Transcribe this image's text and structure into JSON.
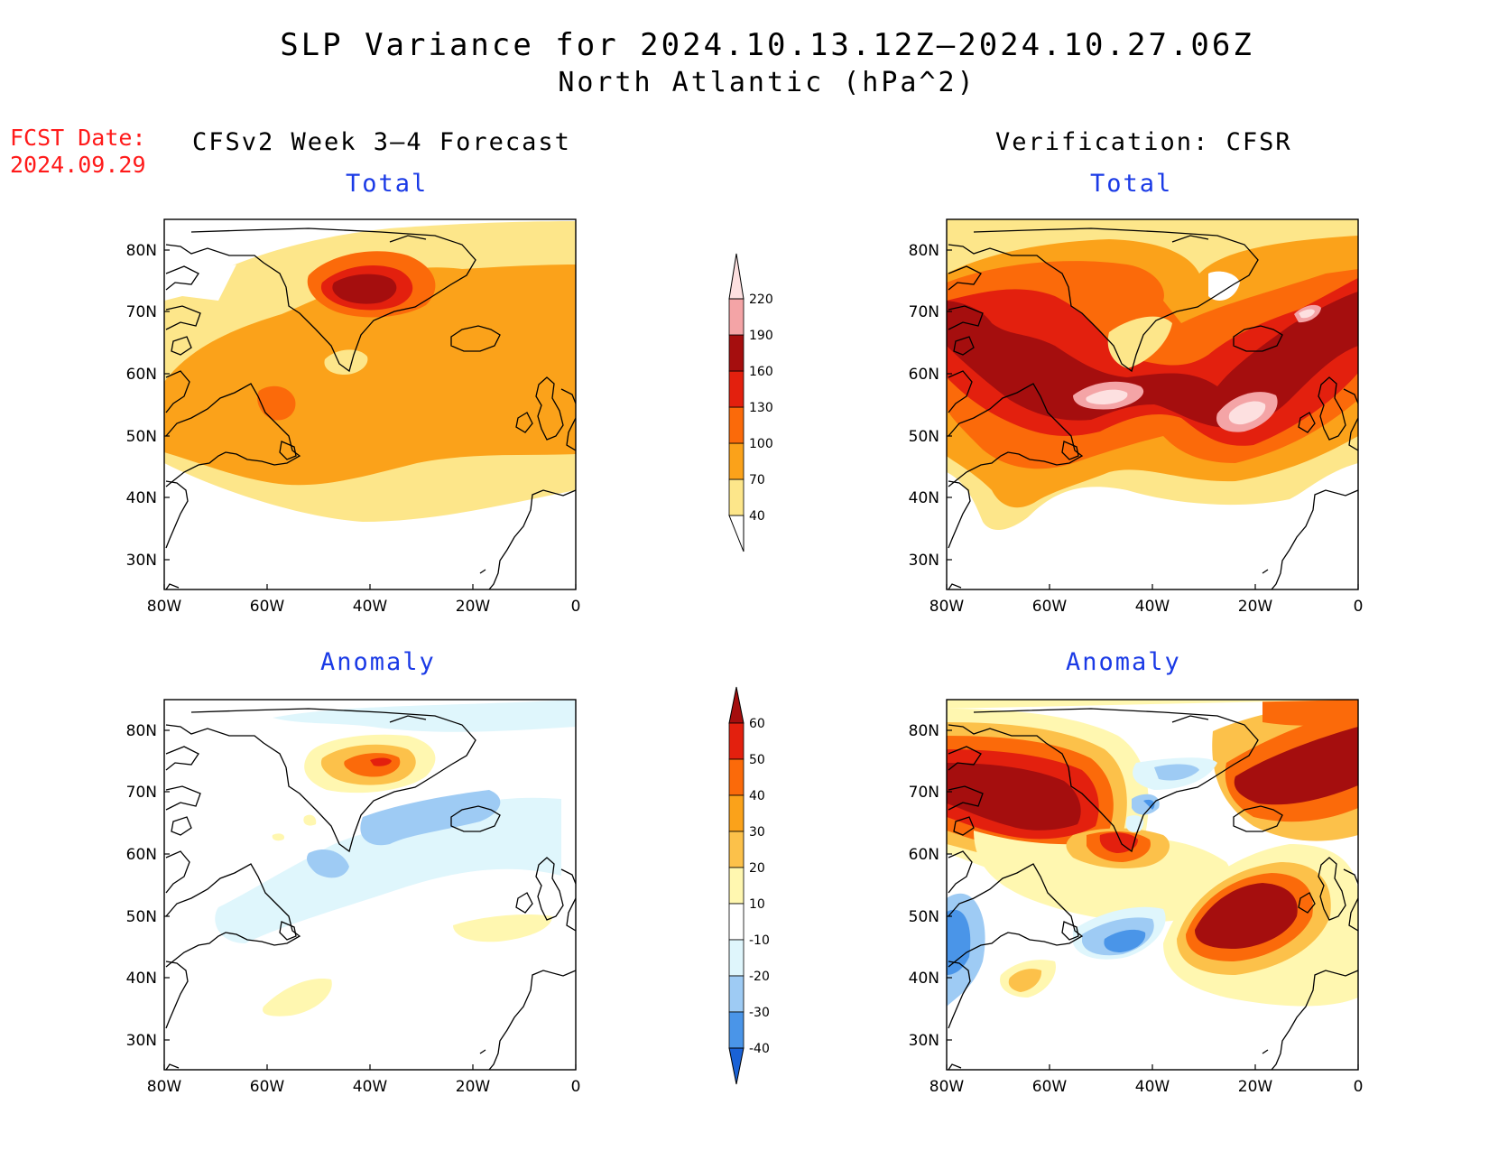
{
  "title": {
    "line1": "SLP Variance for 2024.10.13.12Z–2024.10.27.06Z",
    "line2": "North Atlantic (hPa^2)"
  },
  "forecast_date": {
    "label": "FCST Date:",
    "value": "2024.09.29"
  },
  "columns": {
    "left": "CFSv2 Week 3–4 Forecast",
    "right": "Verification: CFSR"
  },
  "panels": {
    "forecast_total": "Total",
    "verification_total": "Total",
    "forecast_anomaly": "Anomaly",
    "verification_anomaly": "Anomaly"
  },
  "axes": {
    "lat_labels": [
      "80N",
      "70N",
      "60N",
      "50N",
      "40N",
      "30N"
    ],
    "lon_labels": [
      "80W",
      "60W",
      "40W",
      "20W",
      "0"
    ]
  },
  "colorbars": {
    "total": {
      "levels": [
        "40",
        "70",
        "100",
        "130",
        "160",
        "190",
        "220"
      ],
      "colors": [
        "#fde68a",
        "#fba21a",
        "#fb6a0a",
        "#e3200e",
        "#a50e0e",
        "#f4a4a6",
        "#fde0e0"
      ]
    },
    "anomaly": {
      "levels": [
        "60",
        "50",
        "40",
        "30",
        "20",
        "10",
        "-10",
        "-20",
        "-30",
        "-40"
      ],
      "colors": [
        "#a50e0e",
        "#e3200e",
        "#fb6a0a",
        "#fba21a",
        "#fcc14a",
        "#fff7b0",
        "#ffffff",
        "#dff6fc",
        "#9ecbf4",
        "#4a95e8",
        "#1a62d6"
      ]
    }
  }
}
